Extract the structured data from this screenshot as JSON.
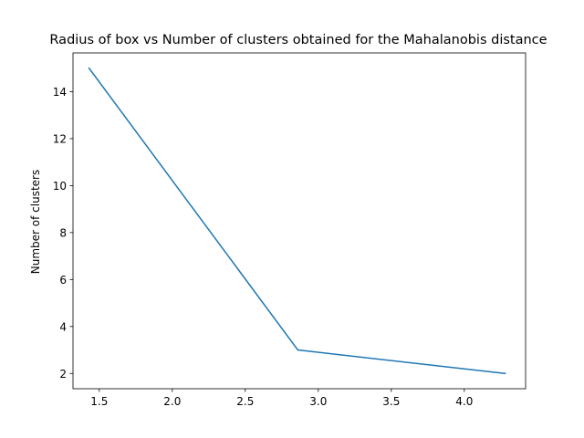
{
  "chart_data": {
    "type": "line",
    "title": "Radius of box vs Number of clusters obtained for the Mahalanobis distance",
    "xlabel": "",
    "ylabel": "Number of clusters",
    "xlim": [
      1.32,
      4.42
    ],
    "ylim": [
      1.35,
      15.65
    ],
    "x_ticks": [
      1.5,
      2.0,
      2.5,
      3.0,
      3.5,
      4.0
    ],
    "x_tick_labels": [
      "1.5",
      "2.0",
      "2.5",
      "3.0",
      "3.5",
      "4.0"
    ],
    "y_ticks": [
      2,
      4,
      6,
      8,
      10,
      12,
      14
    ],
    "y_tick_labels": [
      "2",
      "4",
      "6",
      "8",
      "10",
      "12",
      "14"
    ],
    "grid": false,
    "legend": "none",
    "series": [
      {
        "x": [
          1.43,
          2.86,
          4.28
        ],
        "values": [
          15,
          3,
          2
        ],
        "color": "#1f77b4"
      }
    ]
  }
}
